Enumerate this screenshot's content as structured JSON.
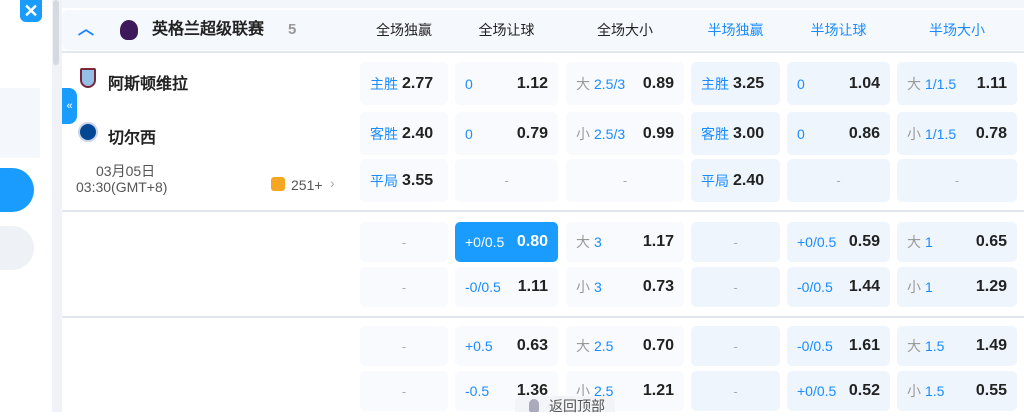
{
  "league": {
    "name": "英格兰超级联赛",
    "count": "5"
  },
  "columns": [
    "全场独赢",
    "全场让球",
    "全场大小",
    "半场独赢",
    "半场让球",
    "半场大小"
  ],
  "colors": {
    "accent": "#1a9cff",
    "half_header": "#1a8cff"
  },
  "match": {
    "home": "阿斯顿维拉",
    "away": "切尔西",
    "date": "03月05日",
    "time": "03:30(GMT+8)",
    "markets": "251+"
  },
  "blocks": [
    [
      [
        {
          "lab": "主胜",
          "val": "2.77"
        },
        {
          "lab": "0",
          "val": "1.12"
        },
        {
          "pre": "大",
          "lab": "2.5/3",
          "val": "0.89"
        },
        {
          "lab": "主胜",
          "val": "3.25"
        },
        {
          "lab": "0",
          "val": "1.04"
        },
        {
          "pre": "大",
          "lab": "1/1.5",
          "val": "1.11"
        }
      ],
      [
        {
          "lab": "客胜",
          "val": "2.40"
        },
        {
          "lab": "0",
          "val": "0.79"
        },
        {
          "pre": "小",
          "lab": "2.5/3",
          "val": "0.99"
        },
        {
          "lab": "客胜",
          "val": "3.00"
        },
        {
          "lab": "0",
          "val": "0.86"
        },
        {
          "pre": "小",
          "lab": "1/1.5",
          "val": "0.78"
        }
      ],
      [
        {
          "lab": "平局",
          "val": "3.55"
        },
        {
          "dash": "-"
        },
        {
          "dash": "-"
        },
        {
          "lab": "平局",
          "val": "2.40"
        },
        {
          "dash": "-"
        },
        {
          "dash": "-"
        }
      ]
    ],
    [
      [
        {
          "dash": "-"
        },
        {
          "lab": "+0/0.5",
          "val": "0.80",
          "selected": true
        },
        {
          "pre": "大",
          "lab": "3",
          "val": "1.17"
        },
        {
          "dash": "-"
        },
        {
          "lab": "+0/0.5",
          "val": "0.59"
        },
        {
          "pre": "大",
          "lab": "1",
          "val": "0.65"
        }
      ],
      [
        {
          "dash": "-"
        },
        {
          "lab": "-0/0.5",
          "val": "1.11"
        },
        {
          "pre": "小",
          "lab": "3",
          "val": "0.73"
        },
        {
          "dash": "-"
        },
        {
          "lab": "-0/0.5",
          "val": "1.44"
        },
        {
          "pre": "小",
          "lab": "1",
          "val": "1.29"
        }
      ]
    ],
    [
      [
        {
          "dash": "-"
        },
        {
          "lab": "+0.5",
          "val": "0.63"
        },
        {
          "pre": "大",
          "lab": "2.5",
          "val": "0.70"
        },
        {
          "dash": "-"
        },
        {
          "lab": "-0/0.5",
          "val": "1.61"
        },
        {
          "pre": "大",
          "lab": "1.5",
          "val": "1.49"
        }
      ],
      [
        {
          "dash": "-"
        },
        {
          "lab": "-0.5",
          "val": "1.36"
        },
        {
          "pre": "小",
          "lab": "2.5",
          "val": "1.21"
        },
        {
          "dash": "-"
        },
        {
          "lab": "+0/0.5",
          "val": "0.52"
        },
        {
          "pre": "小",
          "lab": "1.5",
          "val": "0.55"
        }
      ]
    ]
  ],
  "back_to_top": "返回顶部"
}
